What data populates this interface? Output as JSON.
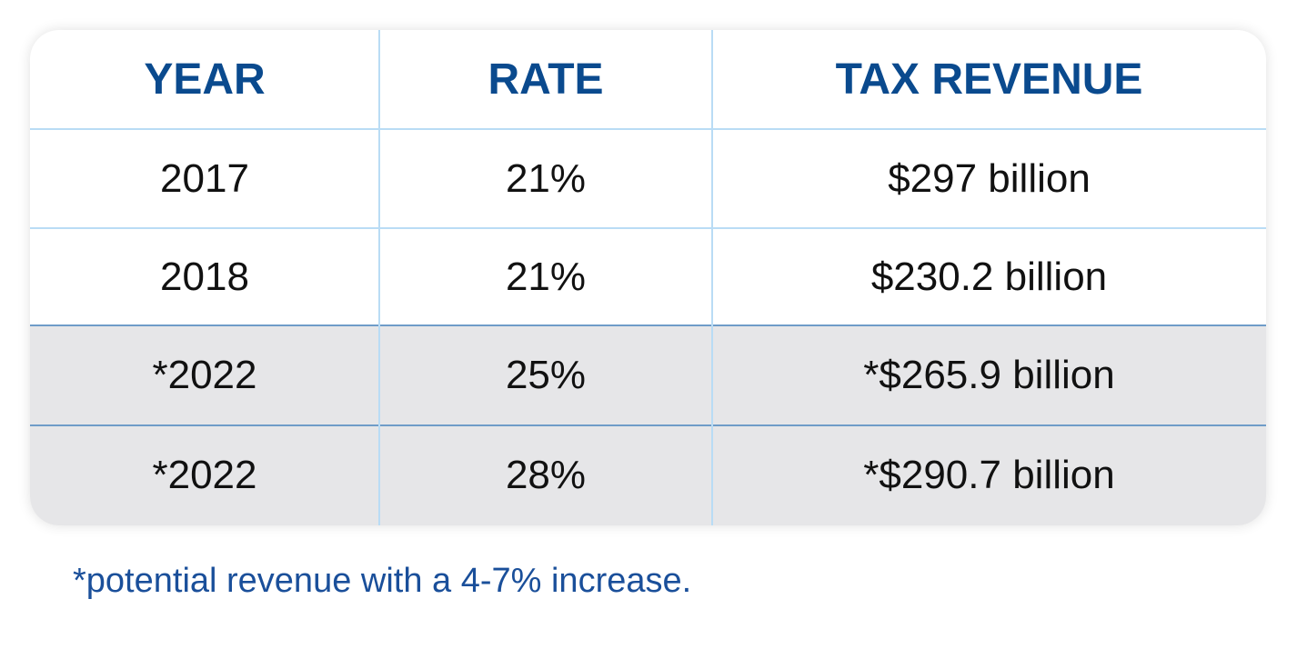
{
  "chart_data": {
    "type": "table",
    "columns": [
      "YEAR",
      "RATE",
      "TAX REVENUE"
    ],
    "rows": [
      {
        "year": "2017",
        "rate": "21%",
        "revenue": "$297 billion",
        "highlighted": false
      },
      {
        "year": "2018",
        "rate": "21%",
        "revenue": "$230.2 billion",
        "highlighted": false
      },
      {
        "year": "*2022",
        "rate": "25%",
        "revenue": "*$265.9 billion",
        "highlighted": true
      },
      {
        "year": "*2022",
        "rate": "28%",
        "revenue": "*$290.7 billion",
        "highlighted": true
      }
    ],
    "footnote": "*potential revenue with a 4-7% increase.",
    "colors": {
      "header_text": "#0a4a8e",
      "highlight_row": "#e6e6e8",
      "grid": "#b9dcf5",
      "footnote": "#1a4f9a"
    }
  }
}
